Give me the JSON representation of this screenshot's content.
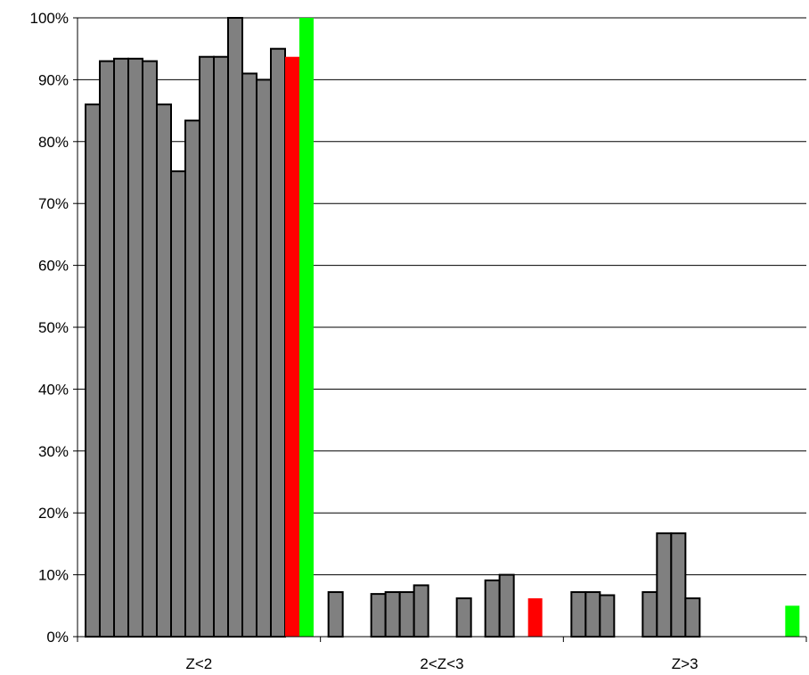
{
  "chart_data": {
    "type": "bar",
    "title": "",
    "xlabel": "",
    "ylabel": "",
    "ylim": [
      0,
      1
    ],
    "y_ticks": [
      "0%",
      "10%",
      "20%",
      "30%",
      "40%",
      "50%",
      "60%",
      "70%",
      "80%",
      "90%",
      "100%"
    ],
    "grid": "horizontal",
    "legend": "none",
    "categories": [
      "Z<2",
      "2<Z<3",
      "Z>3"
    ],
    "colors": {
      "default_bar": "#808080",
      "highlight_red": "#ff0000",
      "highlight_green": "#00ff00",
      "outline": "#000000",
      "grid": "#000000"
    },
    "series": [
      {
        "color": "default",
        "values": [
          0.86,
          0.072,
          0.072
        ]
      },
      {
        "color": "default",
        "values": [
          0.93,
          0.0,
          0.072
        ]
      },
      {
        "color": "default",
        "values": [
          0.934,
          0.0,
          0.067
        ]
      },
      {
        "color": "default",
        "values": [
          0.934,
          0.069,
          0.0
        ]
      },
      {
        "color": "default",
        "values": [
          0.93,
          0.072,
          0.0
        ]
      },
      {
        "color": "default",
        "values": [
          0.86,
          0.072,
          0.072
        ]
      },
      {
        "color": "default",
        "values": [
          0.752,
          0.083,
          0.167
        ]
      },
      {
        "color": "default",
        "values": [
          0.834,
          0.0,
          0.167
        ]
      },
      {
        "color": "default",
        "values": [
          0.937,
          0.0,
          0.062
        ]
      },
      {
        "color": "default",
        "values": [
          0.937,
          0.062,
          0.0
        ]
      },
      {
        "color": "default",
        "values": [
          1.0,
          0.0,
          0.0
        ]
      },
      {
        "color": "default",
        "values": [
          0.91,
          0.091,
          0.0
        ]
      },
      {
        "color": "default",
        "values": [
          0.9,
          0.1,
          0.0
        ]
      },
      {
        "color": "default",
        "values": [
          0.95,
          0.0,
          0.0
        ]
      },
      {
        "color": "red",
        "values": [
          0.937,
          0.062,
          0.0
        ]
      },
      {
        "color": "green",
        "values": [
          1.0,
          0.0,
          0.05
        ]
      }
    ]
  }
}
